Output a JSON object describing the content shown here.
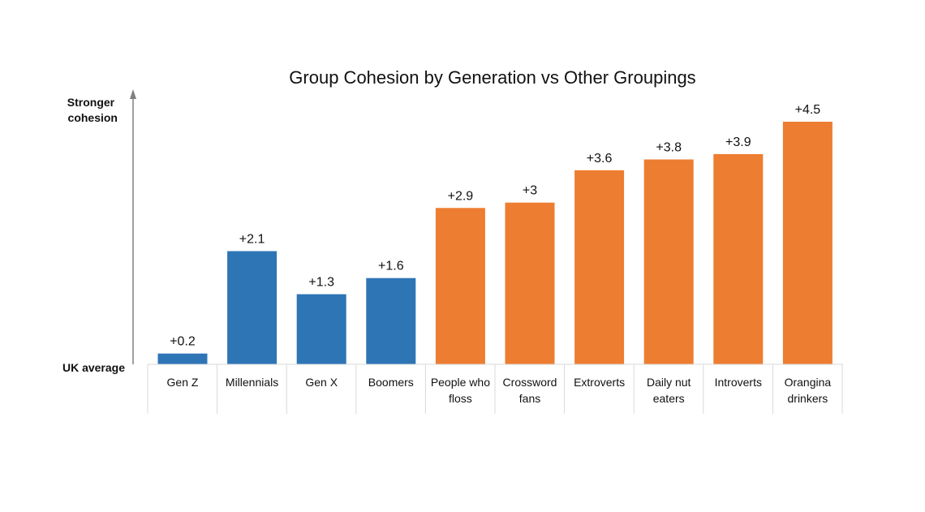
{
  "chart_data": {
    "type": "bar",
    "title": "Group Cohesion by Generation vs Other Groupings",
    "y_top_label": [
      "Stronger",
      "cohesion"
    ],
    "y_baseline_label": "UK average",
    "ylim": [
      0,
      4.5
    ],
    "categories": [
      [
        "Gen Z"
      ],
      [
        "Millennials"
      ],
      [
        "Gen X"
      ],
      [
        "Boomers"
      ],
      [
        "People who",
        "floss"
      ],
      [
        "Crossword",
        "fans"
      ],
      [
        "Extroverts"
      ],
      [
        "Daily nut",
        "eaters"
      ],
      [
        "Introverts"
      ],
      [
        "Orangina",
        "drinkers"
      ]
    ],
    "values": [
      0.2,
      2.1,
      1.3,
      1.6,
      2.9,
      3.0,
      3.6,
      3.8,
      3.9,
      4.5
    ],
    "value_labels": [
      "+0.2",
      "+2.1",
      "+1.3",
      "+1.6",
      "+2.9",
      "+3",
      "+3.6",
      "+3.8",
      "+3.9",
      "+4.5"
    ],
    "groups": [
      "generation",
      "generation",
      "generation",
      "generation",
      "other",
      "other",
      "other",
      "other",
      "other",
      "other"
    ],
    "colors": {
      "generation": "#2E75B6",
      "other": "#ED7D31",
      "axis": "#808080",
      "grid": "#D9D9D9"
    },
    "grid": false,
    "legend": "none"
  }
}
